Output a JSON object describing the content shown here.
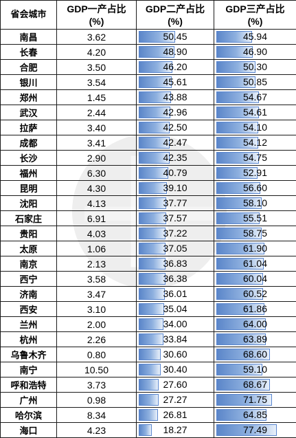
{
  "table": {
    "headers": {
      "city": "省会城市",
      "gdp1": "GDP一产占比",
      "gdp2": "GDP二产占比",
      "gdp3": "GDP三产占比",
      "unit": "(%)"
    },
    "bar_color": "#5b86c9",
    "bar_max": 100,
    "rows": [
      {
        "city": "南昌",
        "gdp1": "3.62",
        "gdp2": "50.45",
        "gdp3": "45.94"
      },
      {
        "city": "长春",
        "gdp1": "4.20",
        "gdp2": "48.90",
        "gdp3": "46.90"
      },
      {
        "city": "合肥",
        "gdp1": "3.50",
        "gdp2": "46.20",
        "gdp3": "50.30"
      },
      {
        "city": "银川",
        "gdp1": "3.54",
        "gdp2": "45.61",
        "gdp3": "50.85"
      },
      {
        "city": "郑州",
        "gdp1": "1.45",
        "gdp2": "43.88",
        "gdp3": "54.67"
      },
      {
        "city": "武汉",
        "gdp1": "2.44",
        "gdp2": "42.96",
        "gdp3": "54.61"
      },
      {
        "city": "拉萨",
        "gdp1": "3.40",
        "gdp2": "42.50",
        "gdp3": "54.10"
      },
      {
        "city": "成都",
        "gdp1": "3.41",
        "gdp2": "42.47",
        "gdp3": "54.12"
      },
      {
        "city": "长沙",
        "gdp1": "2.90",
        "gdp2": "42.35",
        "gdp3": "54.75"
      },
      {
        "city": "福州",
        "gdp1": "6.30",
        "gdp2": "40.79",
        "gdp3": "52.91"
      },
      {
        "city": "昆明",
        "gdp1": "4.30",
        "gdp2": "39.10",
        "gdp3": "56.60"
      },
      {
        "city": "沈阳",
        "gdp1": "4.13",
        "gdp2": "37.77",
        "gdp3": "58.10"
      },
      {
        "city": "石家庄",
        "gdp1": "6.91",
        "gdp2": "37.57",
        "gdp3": "55.51"
      },
      {
        "city": "贵阳",
        "gdp1": "4.03",
        "gdp2": "37.22",
        "gdp3": "58.75"
      },
      {
        "city": "太原",
        "gdp1": "1.06",
        "gdp2": "37.05",
        "gdp3": "61.90"
      },
      {
        "city": "南京",
        "gdp1": "2.13",
        "gdp2": "36.83",
        "gdp3": "61.04"
      },
      {
        "city": "西宁",
        "gdp1": "3.58",
        "gdp2": "36.38",
        "gdp3": "60.04"
      },
      {
        "city": "济南",
        "gdp1": "3.47",
        "gdp2": "36.01",
        "gdp3": "60.52"
      },
      {
        "city": "西安",
        "gdp1": "3.10",
        "gdp2": "35.04",
        "gdp3": "61.86"
      },
      {
        "city": "兰州",
        "gdp1": "2.00",
        "gdp2": "34.00",
        "gdp3": "64.00"
      },
      {
        "city": "杭州",
        "gdp1": "2.26",
        "gdp2": "33.84",
        "gdp3": "63.89"
      },
      {
        "city": "乌鲁木齐",
        "gdp1": "0.80",
        "gdp2": "30.60",
        "gdp3": "68.60"
      },
      {
        "city": "南宁",
        "gdp1": "10.50",
        "gdp2": "30.40",
        "gdp3": "59.10"
      },
      {
        "city": "呼和浩特",
        "gdp1": "3.73",
        "gdp2": "27.60",
        "gdp3": "68.67"
      },
      {
        "city": "广州",
        "gdp1": "0.98",
        "gdp2": "27.27",
        "gdp3": "71.75"
      },
      {
        "city": "哈尔滨",
        "gdp1": "8.34",
        "gdp2": "26.81",
        "gdp3": "64.85"
      },
      {
        "city": "海口",
        "gdp1": "4.23",
        "gdp2": "18.27",
        "gdp3": "77.49"
      }
    ]
  }
}
